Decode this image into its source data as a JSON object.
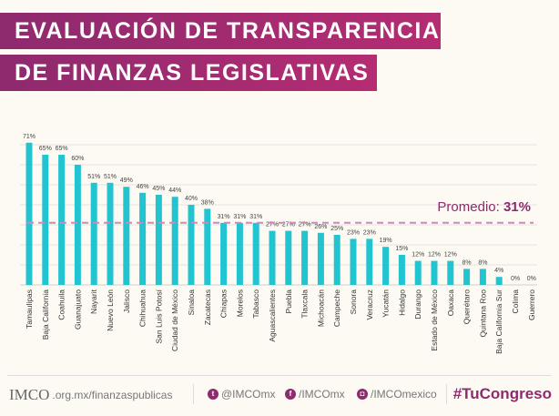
{
  "title": {
    "line1": "EVALUACIÓN DE TRANSPARENCIA",
    "line2": "DE FINANZAS LEGISLATIVAS"
  },
  "colors": {
    "bar": "#22c4cf",
    "average": "#c98bb7",
    "title_bg": "#a02b70",
    "accent": "#8e2a6e"
  },
  "chart_data": {
    "type": "bar",
    "categories": [
      "Tamaulipas",
      "Baja California",
      "Coahuila",
      "Guanajuato",
      "Nayarit",
      "Nuevo León",
      "Jalisco",
      "Chihuahua",
      "San Luis Potosí",
      "Ciudad de México",
      "Sinaloa",
      "Zacatecas",
      "Chiapas",
      "Morelos",
      "Tabasco",
      "Aguascalientes",
      "Puebla",
      "Tlaxcala",
      "Michoacán",
      "Campeche",
      "Sonora",
      "Veracruz",
      "Yucatán",
      "Hidalgo",
      "Durango",
      "Estado de México",
      "Oaxaca",
      "Querétaro",
      "Quintana Roo",
      "Baja California Sur",
      "Colima",
      "Guerrero"
    ],
    "values": [
      71,
      65,
      65,
      60,
      51,
      51,
      49,
      46,
      45,
      44,
      40,
      38,
      31,
      31,
      31,
      27,
      27,
      27,
      26,
      25,
      23,
      23,
      19,
      15,
      12,
      12,
      12,
      8,
      8,
      4,
      0,
      0
    ],
    "data_labels": [
      "71%",
      "65%",
      "65%",
      "60%",
      "51%",
      "51%",
      "49%",
      "46%",
      "45%",
      "44%",
      "40%",
      "38%",
      "31%",
      "31%",
      "31%",
      "27%",
      "27%",
      "27%",
      "26%",
      "25%",
      "23%",
      "23%",
      "19%",
      "15%",
      "12%",
      "12%",
      "12%",
      "8%",
      "8%",
      "4%",
      "0%",
      "0%"
    ],
    "ylim": [
      0,
      70
    ],
    "grid": true,
    "average": {
      "value": 31,
      "label": "Promedio: ",
      "value_label": "31%"
    }
  },
  "footer": {
    "logo": "IMCO",
    "site": ".org.mx/finanzaspublicas",
    "twitter": "@IMCOmx",
    "facebook": "/IMCOmx",
    "instagram": "/IMCOmexico",
    "hashtag": "#TuCongreso"
  }
}
